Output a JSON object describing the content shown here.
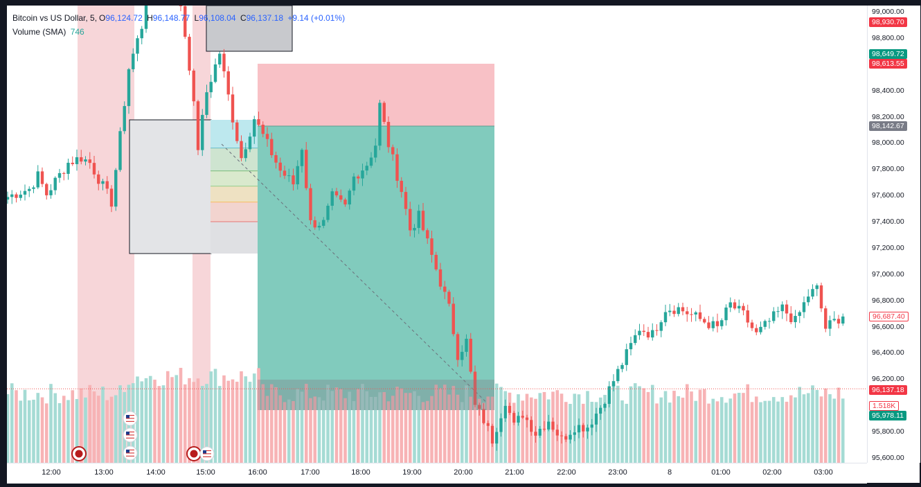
{
  "legend": {
    "symbol": "Bitcoin vs US Dollar, 5,",
    "o_label": "O",
    "o_value": "96,124.72",
    "h_label": "H",
    "h_value": "96,148.77",
    "l_label": "L",
    "l_value": "96,108.04",
    "c_label": "C",
    "c_value": "96,137.18",
    "change": "+9.14 (+0.01%)",
    "volume_label": "Volume (SMA)",
    "volume_value": "746"
  },
  "price_axis": {
    "ticks": [
      "99,000.00",
      "98,800.00",
      "98,400.00",
      "98,200.00",
      "98,000.00",
      "97,800.00",
      "97,600.00",
      "97,400.00",
      "97,200.00",
      "97,000.00",
      "96,800.00",
      "96,600.00",
      "96,400.00",
      "96,200.00",
      "95,800.00",
      "95,600.00"
    ],
    "tags": [
      {
        "text": "98,930.70",
        "color": "#f23645"
      },
      {
        "text": "98,649.72",
        "color": "#089981"
      },
      {
        "text": "98,613.55",
        "color": "#f23645"
      },
      {
        "text": "98,142.67",
        "color": "#787b86"
      },
      {
        "text": "96,687.40",
        "color": "#ffffff",
        "border": "#f23645",
        "fg": "#f23645"
      },
      {
        "text": "96,137.18",
        "color": "#f23645"
      },
      {
        "text": "1.518K",
        "color": "#ffffff",
        "border": "#f23645",
        "fg": "#f23645"
      },
      {
        "text": "95,978.11",
        "color": "#089981"
      }
    ]
  },
  "time_axis": {
    "labels": [
      "12:00",
      "13:00",
      "14:00",
      "15:00",
      "16:00",
      "17:00",
      "18:00",
      "19:00",
      "20:00",
      "21:00",
      "22:00",
      "23:00",
      "8",
      "01:00",
      "02:00",
      "03:00"
    ]
  },
  "colors": {
    "up": "#26a69a",
    "down": "#ef5350",
    "session_shade": "#f7d6d9",
    "profit_zone": "#81cbbd",
    "stop_zone": "#f8c1c6"
  },
  "chart_data": {
    "type": "candlestick",
    "title": "Bitcoin vs US Dollar, 5",
    "ylim": [
      95600,
      99000
    ],
    "interval_minutes": 5,
    "start_time": "11:35",
    "x_ticks": [
      "12:00",
      "13:00",
      "14:00",
      "15:00",
      "16:00",
      "17:00",
      "18:00",
      "19:00",
      "20:00",
      "21:00",
      "22:00",
      "23:00",
      "8",
      "01:00",
      "02:00",
      "03:00"
    ],
    "close_anchors": [
      {
        "t": "11:35",
        "close": 97600
      },
      {
        "t": "11:50",
        "close": 97640
      },
      {
        "t": "12:00",
        "close": 97660
      },
      {
        "t": "12:10",
        "close": 97760
      },
      {
        "t": "12:20",
        "close": 97620
      },
      {
        "t": "12:30",
        "close": 97720
      },
      {
        "t": "12:45",
        "close": 97860
      },
      {
        "t": "13:00",
        "close": 97900
      },
      {
        "t": "13:10",
        "close": 97860
      },
      {
        "t": "13:25",
        "close": 97680
      },
      {
        "t": "13:35",
        "close": 97560
      },
      {
        "t": "13:45",
        "close": 98060
      },
      {
        "t": "13:55",
        "close": 98580
      },
      {
        "t": "14:10",
        "close": 98900
      },
      {
        "t": "14:15",
        "close": 99200
      },
      {
        "t": "14:50",
        "close": 99300
      },
      {
        "t": "15:05",
        "close": 98600
      },
      {
        "t": "15:15",
        "close": 97980
      },
      {
        "t": "15:25",
        "close": 98400
      },
      {
        "t": "15:40",
        "close": 98700
      },
      {
        "t": "15:55",
        "close": 98200
      },
      {
        "t": "16:05",
        "close": 97900
      },
      {
        "t": "16:20",
        "close": 98200
      },
      {
        "t": "16:35",
        "close": 98000
      },
      {
        "t": "16:50",
        "close": 97800
      },
      {
        "t": "17:05",
        "close": 97700
      },
      {
        "t": "17:15",
        "close": 97980
      },
      {
        "t": "17:25",
        "close": 97400
      },
      {
        "t": "17:40",
        "close": 97400
      },
      {
        "t": "17:50",
        "close": 97600
      },
      {
        "t": "18:05",
        "close": 97520
      },
      {
        "t": "18:15",
        "close": 97750
      },
      {
        "t": "18:30",
        "close": 97850
      },
      {
        "t": "18:40",
        "close": 98000
      },
      {
        "t": "18:45",
        "close": 98300
      },
      {
        "t": "18:55",
        "close": 98000
      },
      {
        "t": "19:10",
        "close": 97650
      },
      {
        "t": "19:20",
        "close": 97350
      },
      {
        "t": "19:30",
        "close": 97450
      },
      {
        "t": "19:40",
        "close": 97250
      },
      {
        "t": "19:50",
        "close": 97050
      },
      {
        "t": "20:05",
        "close": 96750
      },
      {
        "t": "20:15",
        "close": 96400
      },
      {
        "t": "20:25",
        "close": 96500
      },
      {
        "t": "20:35",
        "close": 96000
      },
      {
        "t": "20:45",
        "close": 95900
      },
      {
        "t": "20:55",
        "close": 95750
      },
      {
        "t": "21:10",
        "close": 96050
      },
      {
        "t": "21:20",
        "close": 95850
      },
      {
        "t": "21:30",
        "close": 95950
      },
      {
        "t": "21:45",
        "close": 95800
      },
      {
        "t": "22:00",
        "close": 95900
      },
      {
        "t": "22:15",
        "close": 95750
      },
      {
        "t": "22:30",
        "close": 95850
      },
      {
        "t": "22:45",
        "close": 95850
      },
      {
        "t": "23:00",
        "close": 96000
      },
      {
        "t": "23:15",
        "close": 96200
      },
      {
        "t": "23:30",
        "close": 96400
      },
      {
        "t": "23:45",
        "close": 96600
      },
      {
        "t": "00:00",
        "close": 96550
      },
      {
        "t": "00:15",
        "close": 96750
      },
      {
        "t": "00:30",
        "close": 96750
      },
      {
        "t": "00:45",
        "close": 96700
      },
      {
        "t": "01:00",
        "close": 96650
      },
      {
        "t": "01:15",
        "close": 96600
      },
      {
        "t": "01:30",
        "close": 96780
      },
      {
        "t": "01:45",
        "close": 96700
      },
      {
        "t": "02:00",
        "close": 96550
      },
      {
        "t": "02:15",
        "close": 96650
      },
      {
        "t": "02:30",
        "close": 96750
      },
      {
        "t": "02:45",
        "close": 96650
      },
      {
        "t": "03:00",
        "close": 96850
      },
      {
        "t": "03:10",
        "close": 96900
      },
      {
        "t": "03:20",
        "close": 96600
      },
      {
        "t": "03:40",
        "close": 96700
      }
    ],
    "volume_sma_last": 746,
    "last_close": 96137.18
  }
}
